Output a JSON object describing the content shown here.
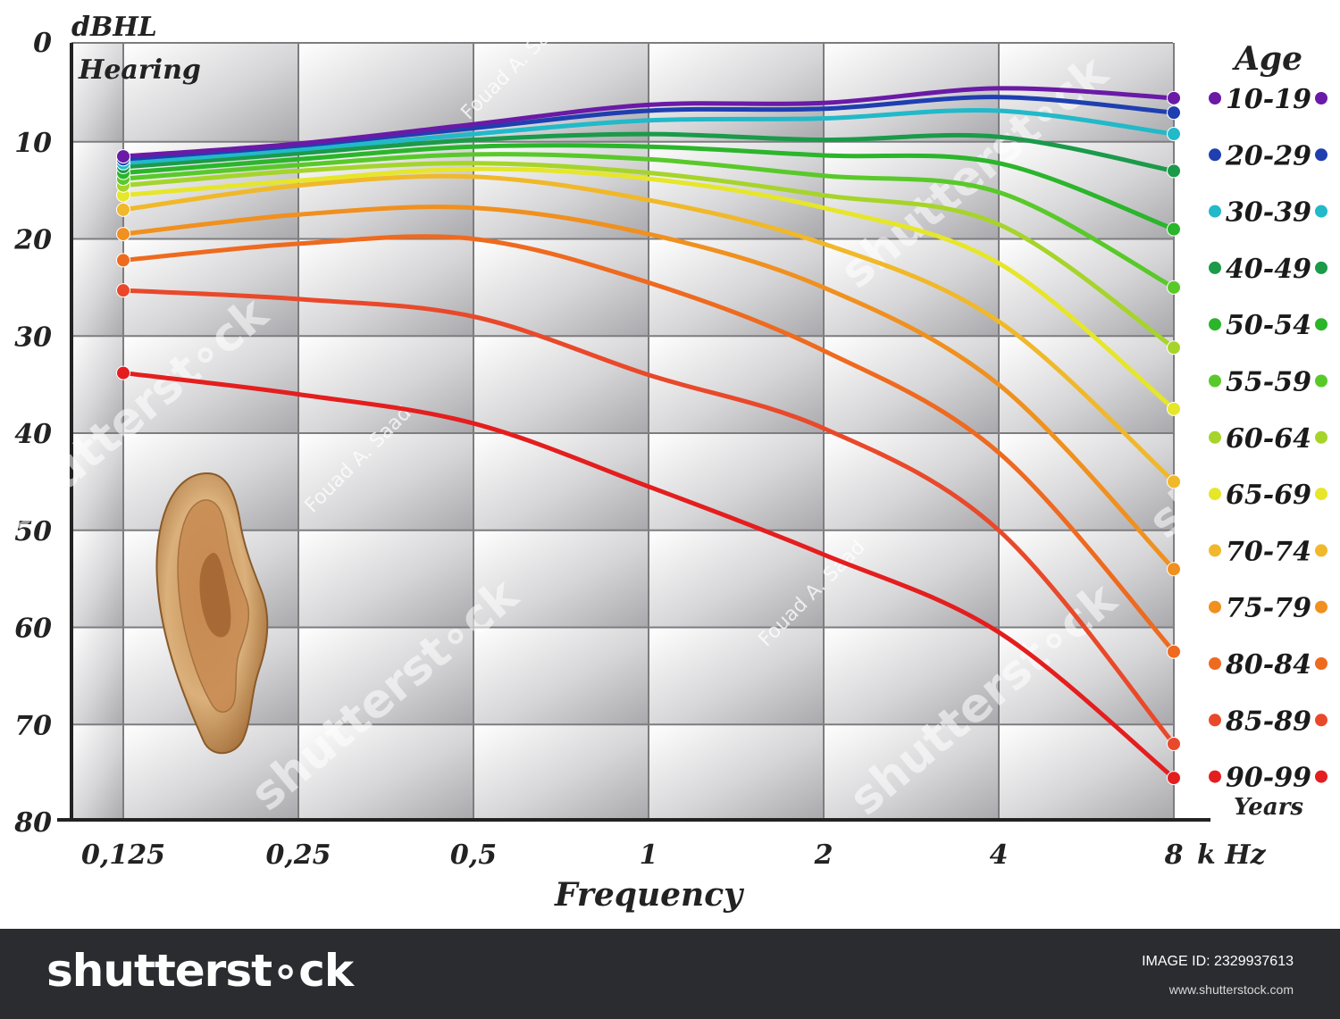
{
  "chart_data": {
    "type": "line",
    "y_axis_title_line1": "dBHL",
    "y_axis_title_line2": "Hearing",
    "xlabel": "Frequency",
    "x_unit": "k Hz",
    "x": [
      "0,125",
      "0,25",
      "0,5",
      "1",
      "2",
      "4",
      "8"
    ],
    "y_ticks": [
      "0",
      "10",
      "20",
      "30",
      "40",
      "50",
      "60",
      "70",
      "80"
    ],
    "ylim": [
      0,
      80
    ],
    "y_inverted": true,
    "grid": true,
    "legend_title": "Age",
    "legend_footer": "Years",
    "legend_position": "right",
    "series": [
      {
        "name": "10-19",
        "color": "#6a1aa6",
        "values": [
          11.5,
          10.2,
          8.2,
          6.2,
          6.0,
          4.5,
          5.5
        ]
      },
      {
        "name": "20-29",
        "color": "#1f3fb0",
        "values": [
          11.8,
          10.4,
          8.6,
          6.8,
          6.6,
          5.4,
          7.0
        ]
      },
      {
        "name": "30-39",
        "color": "#22b9c9",
        "values": [
          12.2,
          10.8,
          9.2,
          7.8,
          7.6,
          6.8,
          9.2
        ]
      },
      {
        "name": "40-49",
        "color": "#1b9a4a",
        "values": [
          12.6,
          11.2,
          9.8,
          9.2,
          9.8,
          9.5,
          13.0
        ]
      },
      {
        "name": "50-54",
        "color": "#2bb52b",
        "values": [
          13.2,
          11.8,
          10.5,
          10.5,
          11.4,
          12.2,
          19.0
        ]
      },
      {
        "name": "55-59",
        "color": "#59c92a",
        "values": [
          13.8,
          12.4,
          11.3,
          11.8,
          13.5,
          15.2,
          25.0
        ]
      },
      {
        "name": "60-64",
        "color": "#a6d42a",
        "values": [
          14.5,
          13.0,
          12.2,
          13.2,
          15.5,
          18.5,
          31.2
        ]
      },
      {
        "name": "65-69",
        "color": "#e6e62a",
        "values": [
          15.5,
          14.0,
          12.8,
          13.8,
          16.8,
          22.5,
          37.5
        ]
      },
      {
        "name": "70-74",
        "color": "#f0b82a",
        "values": [
          17.0,
          14.5,
          13.6,
          16.0,
          20.5,
          28.5,
          45.0
        ]
      },
      {
        "name": "75-79",
        "color": "#f0901f",
        "values": [
          19.5,
          17.5,
          16.8,
          19.5,
          25.0,
          35.0,
          54.0
        ]
      },
      {
        "name": "80-84",
        "color": "#ee6a1f",
        "values": [
          22.2,
          20.5,
          20.0,
          24.5,
          31.5,
          42.0,
          62.5
        ]
      },
      {
        "name": "85-89",
        "color": "#e9492a",
        "values": [
          25.3,
          26.2,
          28.0,
          34.0,
          39.5,
          50.0,
          72.0
        ]
      },
      {
        "name": "90-99",
        "color": "#e41e1e",
        "values": [
          33.8,
          36.0,
          39.0,
          45.5,
          52.5,
          60.5,
          75.5
        ]
      }
    ]
  },
  "watermarks": {
    "author": "Fouad A. Saad",
    "brand": "shutterst∘ck"
  },
  "footer": {
    "logo": "shutterst∘ck",
    "image_id": "IMAGE ID: 2329937613",
    "url": "www.shutterstock.com"
  }
}
